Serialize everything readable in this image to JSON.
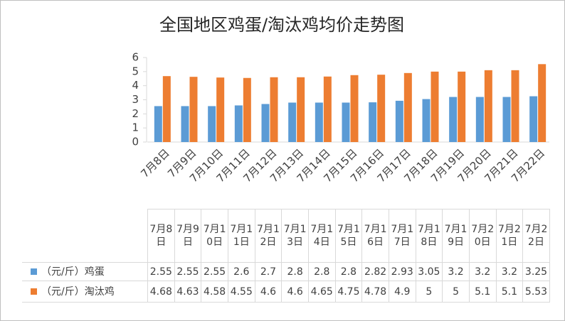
{
  "chart_data": {
    "type": "bar",
    "title": "全国地区鸡蛋/淘汰鸡均价走势图",
    "categories": [
      "7月8日",
      "7月9日",
      "7月10日",
      "7月11日",
      "7月12日",
      "7月13日",
      "7月14日",
      "7月15日",
      "7月16日",
      "7月17日",
      "7月18日",
      "7月19日",
      "7月20日",
      "7月21日",
      "7月22日"
    ],
    "series": [
      {
        "name": "（元/斤）鸡蛋",
        "color": "#5b9bd5",
        "values": [
          2.55,
          2.55,
          2.55,
          2.6,
          2.7,
          2.8,
          2.8,
          2.8,
          2.82,
          2.93,
          3.05,
          3.2,
          3.2,
          3.2,
          3.25
        ]
      },
      {
        "name": "（元/斤）淘汰鸡",
        "color": "#ed7d31",
        "values": [
          4.68,
          4.63,
          4.58,
          4.55,
          4.6,
          4.6,
          4.65,
          4.75,
          4.78,
          4.9,
          5,
          5,
          5.1,
          5.1,
          5.53
        ]
      }
    ],
    "ylim": [
      0,
      6
    ],
    "yticks": [
      0,
      1,
      2,
      3,
      4,
      5,
      6
    ]
  }
}
